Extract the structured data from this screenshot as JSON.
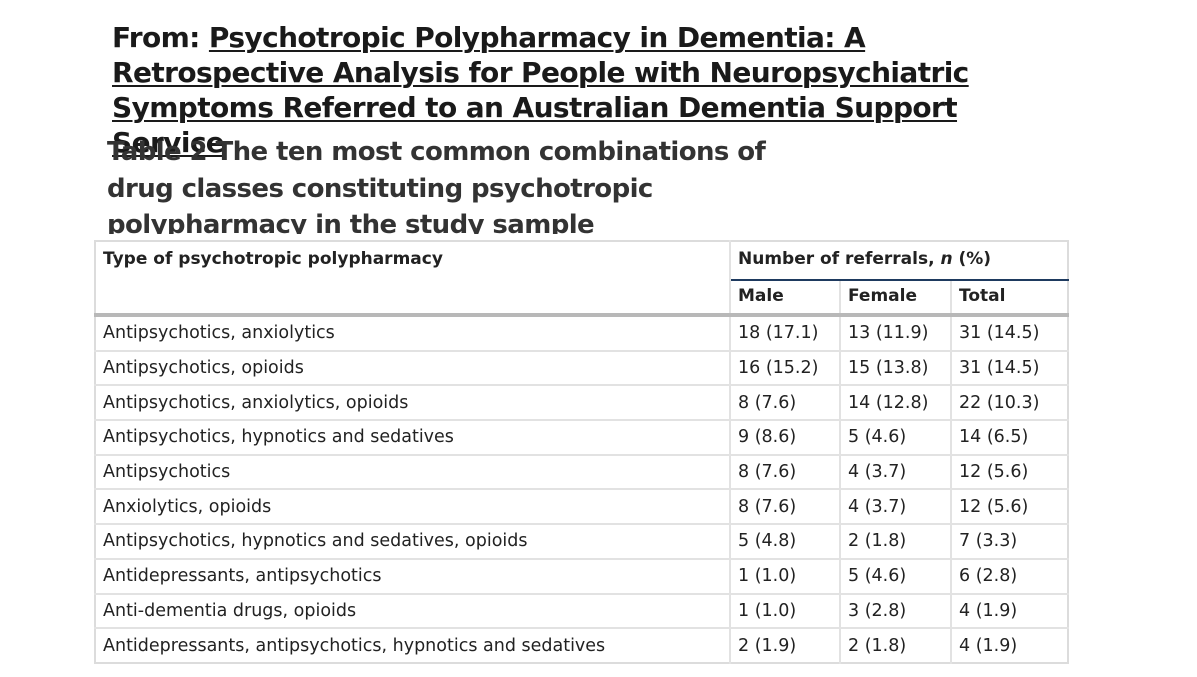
{
  "from_label": "From:",
  "article_title": "Psychotropic Polypharmacy in Dementia: A Retrospective Analysis for People with Neuropsychiatric Symptoms Referred to an Australian Dementia Support Service",
  "table_caption": "Table 2 The ten most common combinations of drug classes constituting psychotropic polypharmacy in the study sample",
  "table": {
    "col_type_header": "Type of psychotropic polypharmacy",
    "group_header_prefix": "Number of referrals, ",
    "group_header_n": "n",
    "group_header_suffix": " (%)",
    "col_male": "Male",
    "col_female": "Female",
    "col_total": "Total",
    "rows": [
      {
        "type": "Antipsychotics, anxiolytics",
        "male": "18 (17.1)",
        "female": "13 (11.9)",
        "total": "31 (14.5)"
      },
      {
        "type": "Antipsychotics, opioids",
        "male": "16 (15.2)",
        "female": "15 (13.8)",
        "total": "31 (14.5)"
      },
      {
        "type": "Antipsychotics, anxiolytics, opioids",
        "male": "8 (7.6)",
        "female": "14 (12.8)",
        "total": "22 (10.3)"
      },
      {
        "type": "Antipsychotics, hypnotics and sedatives",
        "male": "9 (8.6)",
        "female": "5 (4.6)",
        "total": "14 (6.5)"
      },
      {
        "type": "Antipsychotics",
        "male": "8 (7.6)",
        "female": "4 (3.7)",
        "total": "12 (5.6)"
      },
      {
        "type": "Anxiolytics, opioids",
        "male": "8 (7.6)",
        "female": "4 (3.7)",
        "total": "12 (5.6)"
      },
      {
        "type": "Antipsychotics, hypnotics and sedatives, opioids",
        "male": "5 (4.8)",
        "female": "2 (1.8)",
        "total": "7 (3.3)"
      },
      {
        "type": "Antidepressants, antipsychotics",
        "male": "1 (1.0)",
        "female": "5 (4.6)",
        "total": "6 (2.8)"
      },
      {
        "type": "Anti-dementia drugs, opioids",
        "male": "1 (1.0)",
        "female": "3 (2.8)",
        "total": "4 (1.9)"
      },
      {
        "type": "Antidepressants, antipsychotics, hypnotics and sedatives",
        "male": "2 (1.9)",
        "female": "2 (1.8)",
        "total": "4 (1.9)"
      }
    ]
  }
}
